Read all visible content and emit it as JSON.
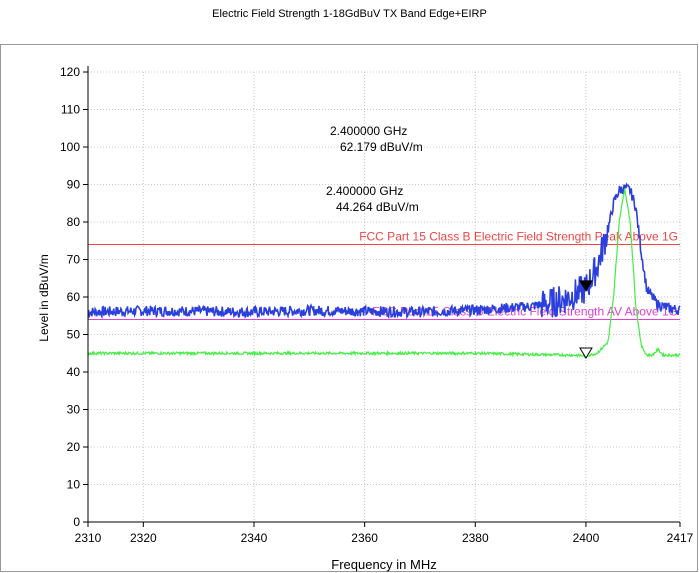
{
  "chart_data": {
    "type": "line",
    "title": "Electric Field Strength 1-18GdBuV TX Band Edge+EIRP",
    "xlabel": "Frequency in MHz",
    "ylabel": "Level in dBuV/m",
    "xlim": [
      2310,
      2417
    ],
    "ylim": [
      0,
      120
    ],
    "x_ticks": [
      2310,
      2320,
      2340,
      2360,
      2380,
      2400,
      2417
    ],
    "y_ticks": [
      0,
      10,
      20,
      30,
      40,
      50,
      60,
      70,
      80,
      90,
      100,
      110,
      120
    ],
    "grid": true,
    "limit_lines": [
      {
        "name": "FCC Part 15 Class B Electric Field Strength Peak Above 1G",
        "y": 74,
        "color": "#f04646"
      },
      {
        "name": "FCC Part 15 Class B Electric Field Strength AV Above 1G",
        "y": 54,
        "color": "#e040d0"
      }
    ],
    "series": [
      {
        "color": "#2b3fdc",
        "x": [
          2310,
          2320,
          2330,
          2340,
          2350,
          2360,
          2370,
          2380,
          2385,
          2390,
          2394,
          2397,
          2399,
          2400,
          2402,
          2404,
          2405,
          2406,
          2407,
          2408,
          2409,
          2410,
          2411,
          2413,
          2415,
          2417
        ],
        "y": [
          56,
          56.3,
          56.2,
          56,
          56.4,
          56.2,
          56,
          56.5,
          57,
          57.5,
          58.5,
          60,
          61.5,
          62.2,
          68,
          78,
          85,
          88.5,
          89,
          88.5,
          84,
          72,
          62,
          58,
          57,
          56.5
        ]
      },
      {
        "color": "#44ee44",
        "x": [
          2310,
          2320,
          2340,
          2360,
          2380,
          2390,
          2398,
          2400,
          2402,
          2404,
          2405,
          2406,
          2407,
          2408,
          2409,
          2410,
          2411,
          2412,
          2413,
          2414,
          2415,
          2417
        ],
        "y": [
          45,
          45,
          45,
          45,
          45,
          44.7,
          44.5,
          44.3,
          45,
          48,
          60,
          80,
          89,
          80,
          58,
          47,
          44.5,
          44.5,
          46,
          44.5,
          44.5,
          44.5
        ]
      }
    ],
    "markers": [
      {
        "x": 2400,
        "y": 62.179,
        "style": "filled",
        "freq_label": "2.400000 GHz",
        "level_label": "62.179 dBuV/m"
      },
      {
        "x": 2400,
        "y": 44.264,
        "style": "hollow",
        "freq_label": "2.400000 GHz",
        "level_label": "44.264 dBuV/m"
      }
    ]
  }
}
